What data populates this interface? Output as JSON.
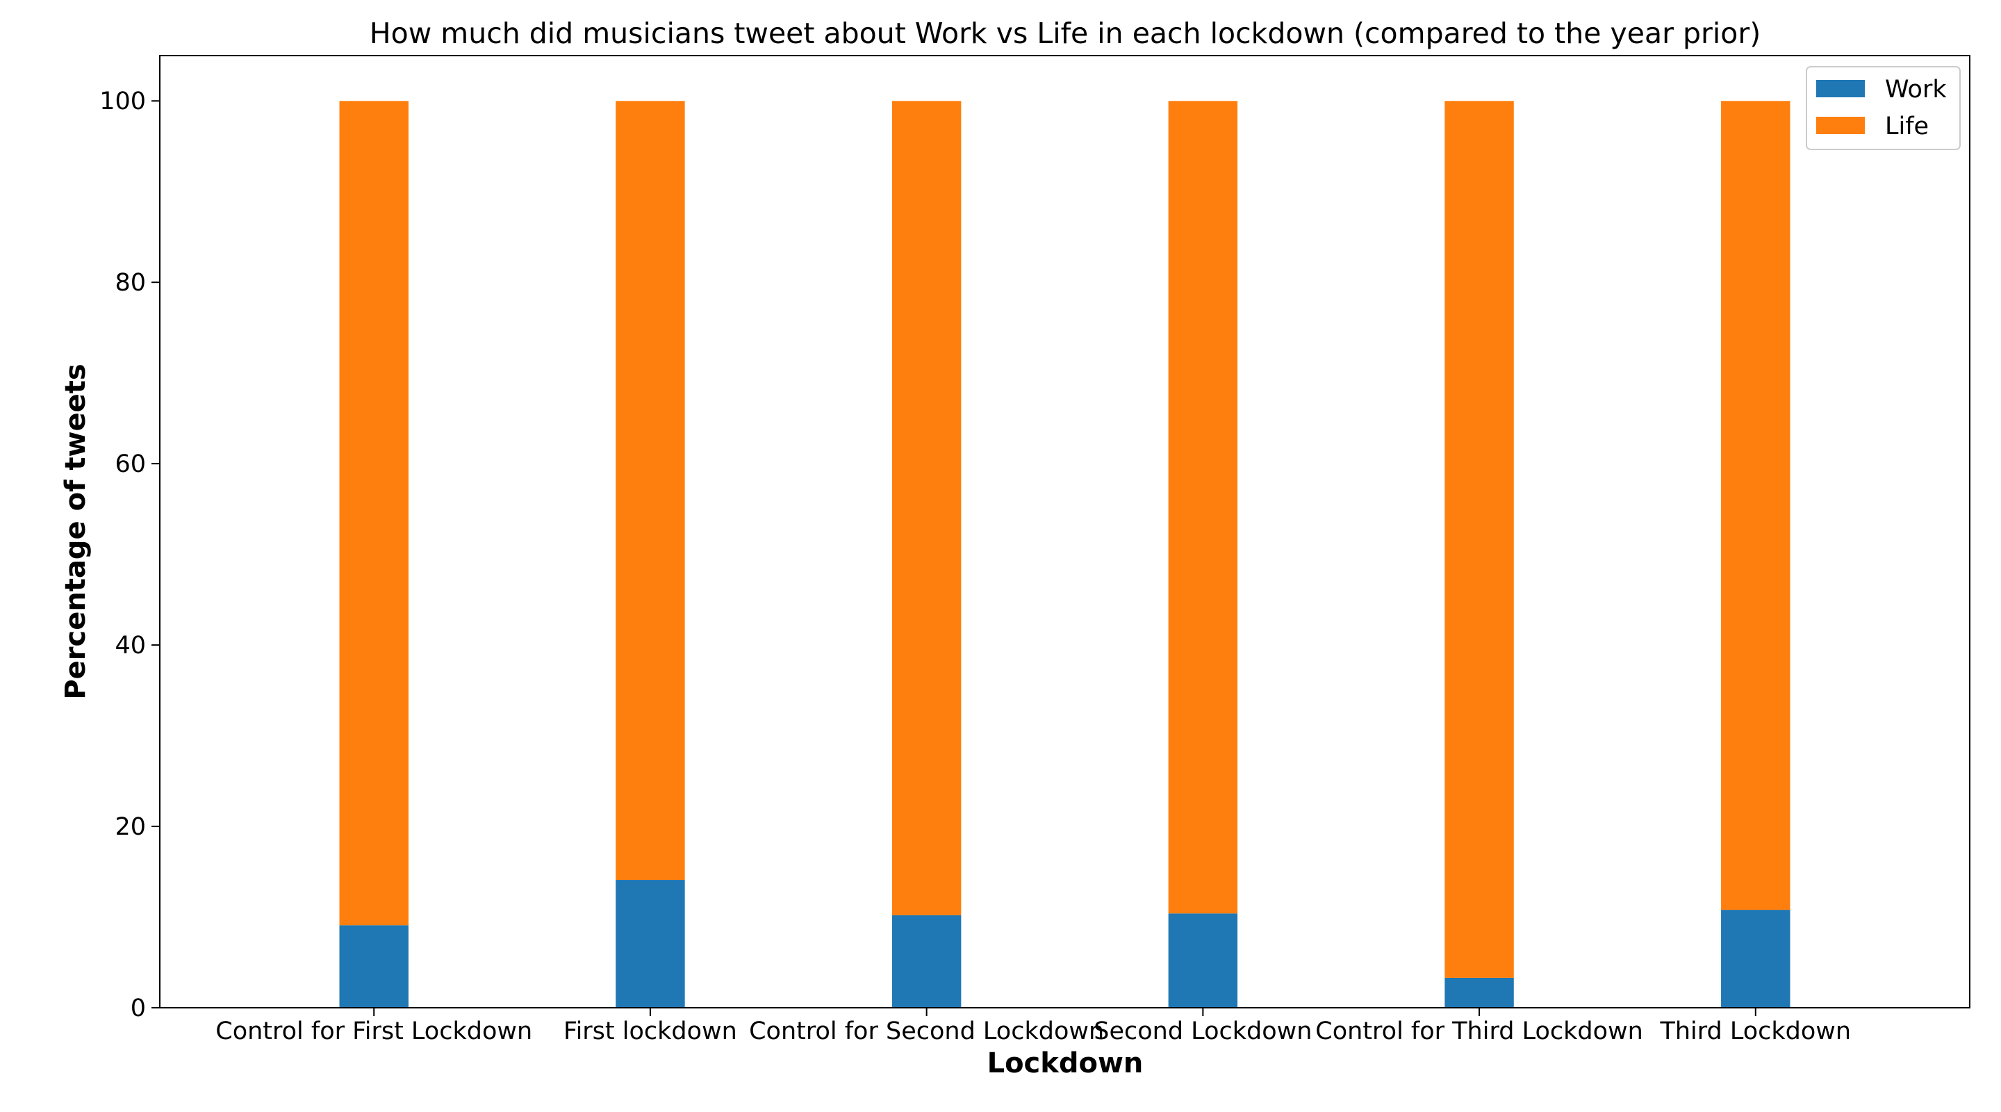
{
  "chart_data": {
    "type": "bar",
    "stacked": true,
    "title": "How much did musicians tweet about Work vs Life in each lockdown (compared to the year prior)",
    "xlabel": "Lockdown",
    "ylabel": "Percentage of tweets",
    "categories": [
      "Control for First Lockdown",
      "First lockdown",
      "Control for Second Lockdown",
      "Second Lockdown",
      "Control for Third Lockdown",
      "Third Lockdown"
    ],
    "series": [
      {
        "name": "Work",
        "color": "#1f77b4",
        "values": [
          9.1,
          14.1,
          10.2,
          10.4,
          3.3,
          10.8
        ]
      },
      {
        "name": "Life",
        "color": "#ff7f0e",
        "values": [
          90.9,
          85.9,
          89.8,
          89.6,
          96.7,
          89.2
        ]
      }
    ],
    "ylim": [
      0,
      105
    ],
    "yticks": [
      0,
      20,
      40,
      60,
      80,
      100
    ],
    "grid": false,
    "legend_position": "top-right"
  }
}
